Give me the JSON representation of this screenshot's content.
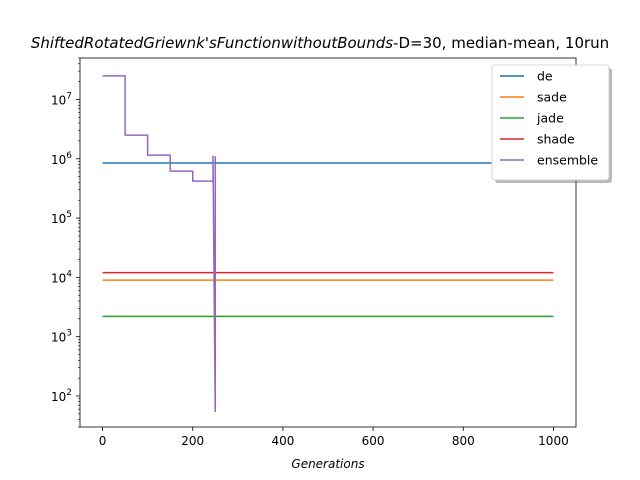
{
  "chart_data": {
    "type": "line",
    "title_prefix": "ShiftedRotatedGriewnk's",
    "title_italic": "ShiftedRotatedGriewnk'sFunctionwithoutBounds",
    "title_rest": "-D=30, median-mean, 10run",
    "xlabel": "Generations",
    "ylabel": "",
    "xlim": [
      -50,
      1050
    ],
    "ylim": [
      30,
      50000000
    ],
    "yscale": "log",
    "x_ticks": [
      0,
      200,
      400,
      600,
      800,
      1000
    ],
    "y_ticks": [
      {
        "exp": 2,
        "value": 100
      },
      {
        "exp": 3,
        "value": 1000
      },
      {
        "exp": 4,
        "value": 10000
      },
      {
        "exp": 5,
        "value": 100000
      },
      {
        "exp": 6,
        "value": 1000000
      },
      {
        "exp": 7,
        "value": 10000000
      }
    ],
    "legend_position": "top-right",
    "series": [
      {
        "name": "de",
        "color": "#1f77b4",
        "x": [
          0,
          1000
        ],
        "y": [
          850000,
          850000
        ]
      },
      {
        "name": "sade",
        "color": "#ff7f0e",
        "x": [
          0,
          1000
        ],
        "y": [
          9000,
          9000
        ]
      },
      {
        "name": "jade",
        "color": "#2ca02c",
        "x": [
          0,
          1000
        ],
        "y": [
          2200,
          2200
        ]
      },
      {
        "name": "shade",
        "color": "#d62728",
        "x": [
          0,
          1000
        ],
        "y": [
          12000,
          12000
        ]
      },
      {
        "name": "ensemble",
        "color": "#9467bd",
        "x": [
          0,
          50,
          50,
          100,
          100,
          150,
          150,
          200,
          200,
          245,
          245,
          248,
          250,
          250
        ],
        "y": [
          25000000,
          25000000,
          2500000,
          2500000,
          1150000,
          1150000,
          620000,
          620000,
          420000,
          420000,
          1100000,
          2200,
          55,
          1100000
        ]
      }
    ]
  }
}
